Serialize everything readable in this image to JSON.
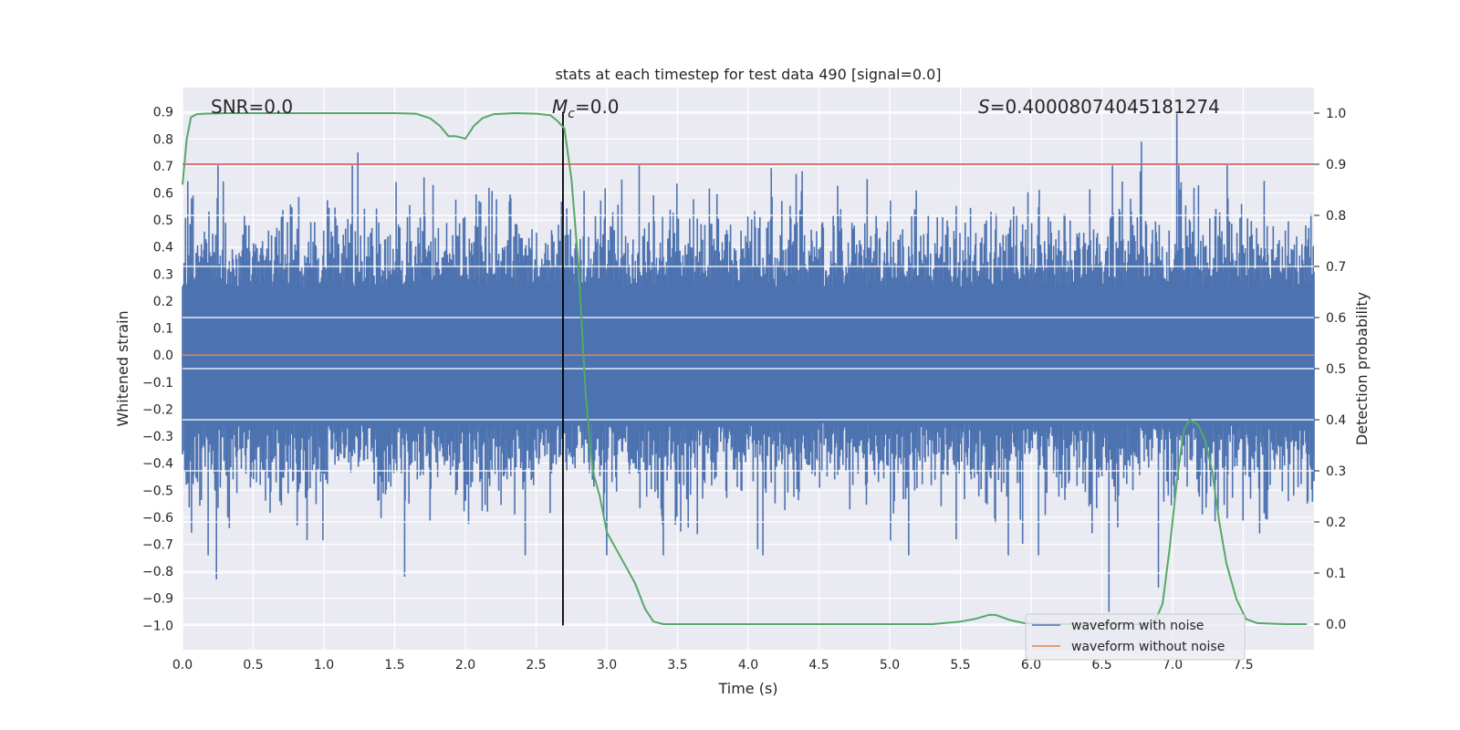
{
  "chart_data": {
    "type": "line",
    "title": "stats at each timestep for test data 490 [signal=0.0]",
    "xlabel": "Time (s)",
    "ylabel_left": "Whitened strain",
    "ylabel_right": "Detection probability",
    "xlim": [
      0.0,
      8.0
    ],
    "ylim_left": [
      -1.09,
      0.99
    ],
    "ylim_right": [
      -0.05,
      1.05
    ],
    "x_ticks": [
      "0.0",
      "0.5",
      "1.0",
      "1.5",
      "2.0",
      "2.5",
      "3.0",
      "3.5",
      "4.0",
      "4.5",
      "5.0",
      "5.5",
      "6.0",
      "6.5",
      "7.0",
      "7.5"
    ],
    "y_left_ticks": [
      "0.9",
      "0.8",
      "0.7",
      "0.6",
      "0.5",
      "0.4",
      "0.3",
      "0.2",
      "0.1",
      "0.0",
      "−0.1",
      "−0.2",
      "−0.3",
      "−0.4",
      "−0.5",
      "−0.6",
      "−0.7",
      "−0.8",
      "−0.9",
      "−1.0"
    ],
    "y_right_ticks": [
      "0.0",
      "0.1",
      "0.2",
      "0.3",
      "0.4",
      "0.5",
      "0.6",
      "0.7",
      "0.8",
      "0.9",
      "1.0"
    ],
    "grid": true,
    "legend_position": "lower-right",
    "annotations": {
      "snr_label": "SNR=0.0",
      "mc_symbol": "M",
      "mc_subscript": "c",
      "mc_value": "=0.0",
      "s_symbol": "S",
      "s_value": "=0.40008074045181274"
    },
    "series": [
      {
        "name": "waveform with noise",
        "axis": "left",
        "color": "#4c72b0",
        "description": "dense whitened noise, range approx -0.95 to 0.9",
        "highlight_peaks": [
          {
            "x": 0.24,
            "y": -0.83
          },
          {
            "x": 1.24,
            "y": 0.75
          },
          {
            "x": 1.57,
            "y": -0.82
          },
          {
            "x": 6.55,
            "y": -0.95
          },
          {
            "x": 6.78,
            "y": 0.79
          },
          {
            "x": 6.9,
            "y": -0.86
          },
          {
            "x": 7.03,
            "y": 0.9
          }
        ]
      },
      {
        "name": "waveform without noise",
        "axis": "left",
        "color": "#dd8452",
        "x": [
          0.0,
          8.0
        ],
        "y": [
          0.0,
          0.0
        ]
      },
      {
        "name": "detection probability",
        "axis": "right",
        "color": "#55a868",
        "x": [
          0.0,
          0.03,
          0.06,
          0.1,
          0.15,
          0.3,
          0.6,
          1.0,
          1.5,
          1.65,
          1.75,
          1.82,
          1.88,
          1.93,
          2.0,
          2.06,
          2.12,
          2.2,
          2.35,
          2.5,
          2.6,
          2.65,
          2.7,
          2.75,
          2.8,
          2.85,
          2.9,
          2.95,
          3.0,
          3.1,
          3.2,
          3.27,
          3.33,
          3.4,
          3.6,
          4.0,
          5.0,
          5.3,
          5.5,
          5.6,
          5.7,
          5.75,
          5.85,
          5.95,
          6.1,
          6.5,
          6.8,
          6.88,
          6.93,
          6.98,
          7.03,
          7.08,
          7.12,
          7.18,
          7.23,
          7.28,
          7.33,
          7.38,
          7.45,
          7.52,
          7.6,
          7.8,
          7.95
        ],
        "y": [
          0.86,
          0.95,
          0.992,
          0.998,
          0.999,
          1.0,
          1.0,
          1.0,
          1.0,
          0.999,
          0.99,
          0.975,
          0.955,
          0.955,
          0.95,
          0.975,
          0.99,
          0.998,
          1.0,
          0.999,
          0.996,
          0.985,
          0.97,
          0.87,
          0.7,
          0.45,
          0.3,
          0.25,
          0.18,
          0.13,
          0.08,
          0.03,
          0.005,
          0.0,
          0.0,
          0.0,
          0.0,
          0.0,
          0.005,
          0.01,
          0.018,
          0.018,
          0.008,
          0.002,
          0.0,
          0.0,
          0.0,
          0.008,
          0.04,
          0.15,
          0.28,
          0.38,
          0.4,
          0.39,
          0.36,
          0.3,
          0.2,
          0.12,
          0.05,
          0.01,
          0.002,
          0.0,
          0.0
        ]
      },
      {
        "name": "detection threshold",
        "axis": "right",
        "color": "#c44e52",
        "x": [
          0.0,
          8.0
        ],
        "y": [
          0.9,
          0.9
        ]
      },
      {
        "name": "merger time marker",
        "axis": "left",
        "color": "#000000",
        "x": [
          2.69,
          2.69
        ],
        "y": [
          -1.0,
          0.9
        ]
      }
    ]
  }
}
